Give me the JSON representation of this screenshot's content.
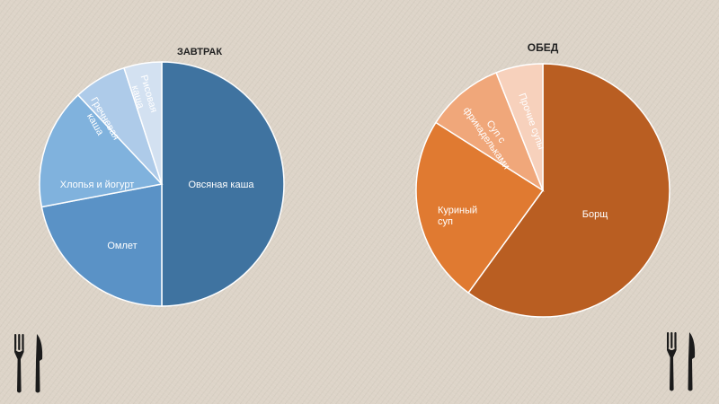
{
  "chart_data": [
    {
      "type": "pie",
      "title": "ЗАВТРАК",
      "series": [
        {
          "values": [
            50,
            22,
            16,
            7,
            5
          ],
          "categories": [
            "Овсяная каша",
            "Омлет",
            "Хлопья и йогурт",
            "Гречневая каша",
            "Рисовая каша"
          ],
          "colors": [
            "#3f73a0",
            "#5a92c6",
            "#80b2dd",
            "#aecbe9",
            "#d3e1f1"
          ],
          "label_colors": [
            "#ffffff",
            "#ffffff",
            "#ffffff",
            "#ffffff",
            "#ffffff"
          ]
        }
      ]
    },
    {
      "type": "pie",
      "title": "ОБЕД",
      "series": [
        {
          "values": [
            60,
            24,
            10,
            6
          ],
          "categories": [
            "Борщ",
            "Куриный суп",
            "Суп с фрикадельками",
            "Прочие супы"
          ],
          "colors": [
            "#b95e22",
            "#e07a31",
            "#f0a77a",
            "#f7d1bc"
          ],
          "label_colors": [
            "#ffffff",
            "#ffffff",
            "#ffffff",
            "#ffffff"
          ]
        }
      ]
    }
  ],
  "icons": [
    "fork-knife-icon",
    "fork-knife-icon"
  ]
}
